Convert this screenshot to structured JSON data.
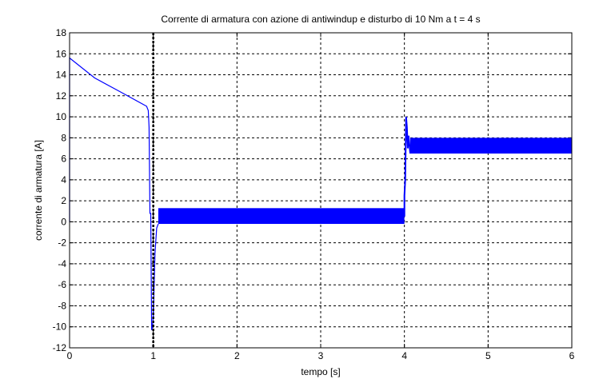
{
  "chart_data": {
    "type": "line",
    "title": "Corrente di armatura con azione di antiwindup e disturbo di 10 Nm a t = 4 s",
    "xlabel": "tempo [s]",
    "ylabel": "corrente di armatura [A]",
    "xlim": [
      0,
      6
    ],
    "ylim": [
      -12,
      18
    ],
    "xticks": [
      0,
      1,
      2,
      3,
      4,
      5,
      6
    ],
    "yticks": [
      -12,
      -10,
      -8,
      -6,
      -4,
      -2,
      0,
      2,
      4,
      6,
      8,
      10,
      12,
      14,
      16,
      18
    ],
    "grid": true,
    "line_color": "#0000ff",
    "vertical_marker": {
      "x": 1,
      "style": "dotted",
      "color": "#000000"
    },
    "series": [
      {
        "x": [
          0,
          0,
          0.3,
          0.6,
          0.92,
          0.94,
          0.95,
          0.96,
          0.97,
          0.98,
          0.99,
          1.0,
          1.02,
          1.04,
          1.06
        ],
        "y": [
          0,
          15.6,
          13.7,
          12.4,
          11.0,
          10.6,
          9.0,
          0.8,
          0.8,
          -10.3,
          -10.0,
          -9.0,
          -3.0,
          -0.6,
          -0.2
        ]
      }
    ],
    "oscillation_bands": [
      {
        "x": [
          1.06,
          4.0
        ],
        "y_min": -0.2,
        "y_max": 1.3
      },
      {
        "x": [
          4.07,
          6.0
        ],
        "y_min": 6.5,
        "y_max": 8.0
      }
    ],
    "transient_at_disturbance": {
      "x": [
        4.0,
        4.0,
        4.01,
        4.02,
        4.03,
        4.04,
        4.05,
        4.07
      ],
      "y": [
        0.5,
        2.5,
        4.0,
        10.0,
        9.0,
        7.0,
        8.2,
        6.5
      ]
    }
  }
}
